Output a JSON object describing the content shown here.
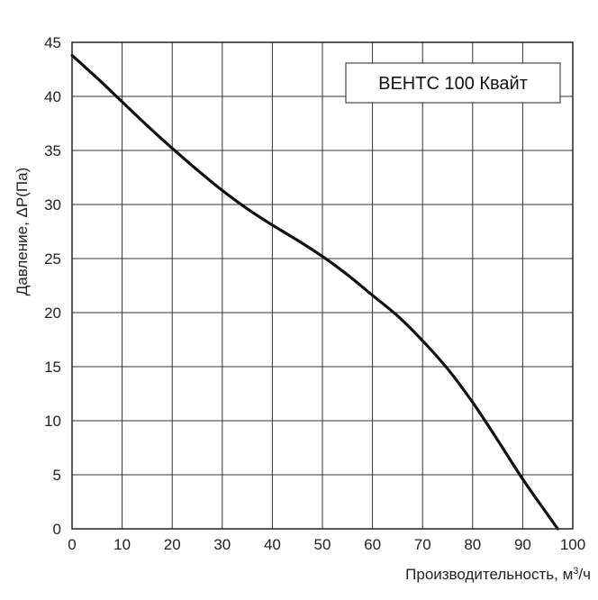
{
  "chart_data": {
    "type": "line",
    "title": "",
    "xlabel": "Производительность, м",
    "xlabel_sup": "3",
    "xlabel_tail": "/ч",
    "ylabel": "Давление, ΔP(Па)",
    "xlim": [
      0,
      100
    ],
    "ylim": [
      0,
      45
    ],
    "x_ticks": [
      0,
      10,
      20,
      30,
      40,
      50,
      60,
      70,
      80,
      90,
      100
    ],
    "y_ticks": [
      0,
      5,
      10,
      15,
      20,
      25,
      30,
      35,
      40,
      45
    ],
    "x_tick_labels": [
      "0",
      "10",
      "20",
      "30",
      "40",
      "50",
      "60",
      "70",
      "80",
      "90",
      "100"
    ],
    "y_tick_labels": [
      "0",
      "5",
      "10",
      "15",
      "20",
      "25",
      "30",
      "35",
      "40",
      "45"
    ],
    "grid": true,
    "legend_position": "top-right",
    "series": [
      {
        "name": "ВЕНТС 100 Квайт",
        "color": "#111111",
        "x": [
          0,
          5,
          10,
          15,
          20,
          25,
          30,
          35,
          40,
          45,
          50,
          55,
          60,
          65,
          70,
          75,
          80,
          85,
          90,
          95,
          97
        ],
        "y": [
          43.8,
          41.7,
          39.5,
          37.3,
          35.2,
          33.2,
          31.3,
          29.6,
          28.1,
          26.7,
          25.2,
          23.5,
          21.6,
          19.7,
          17.4,
          14.8,
          11.7,
          8.2,
          4.6,
          1.3,
          0
        ]
      }
    ]
  }
}
